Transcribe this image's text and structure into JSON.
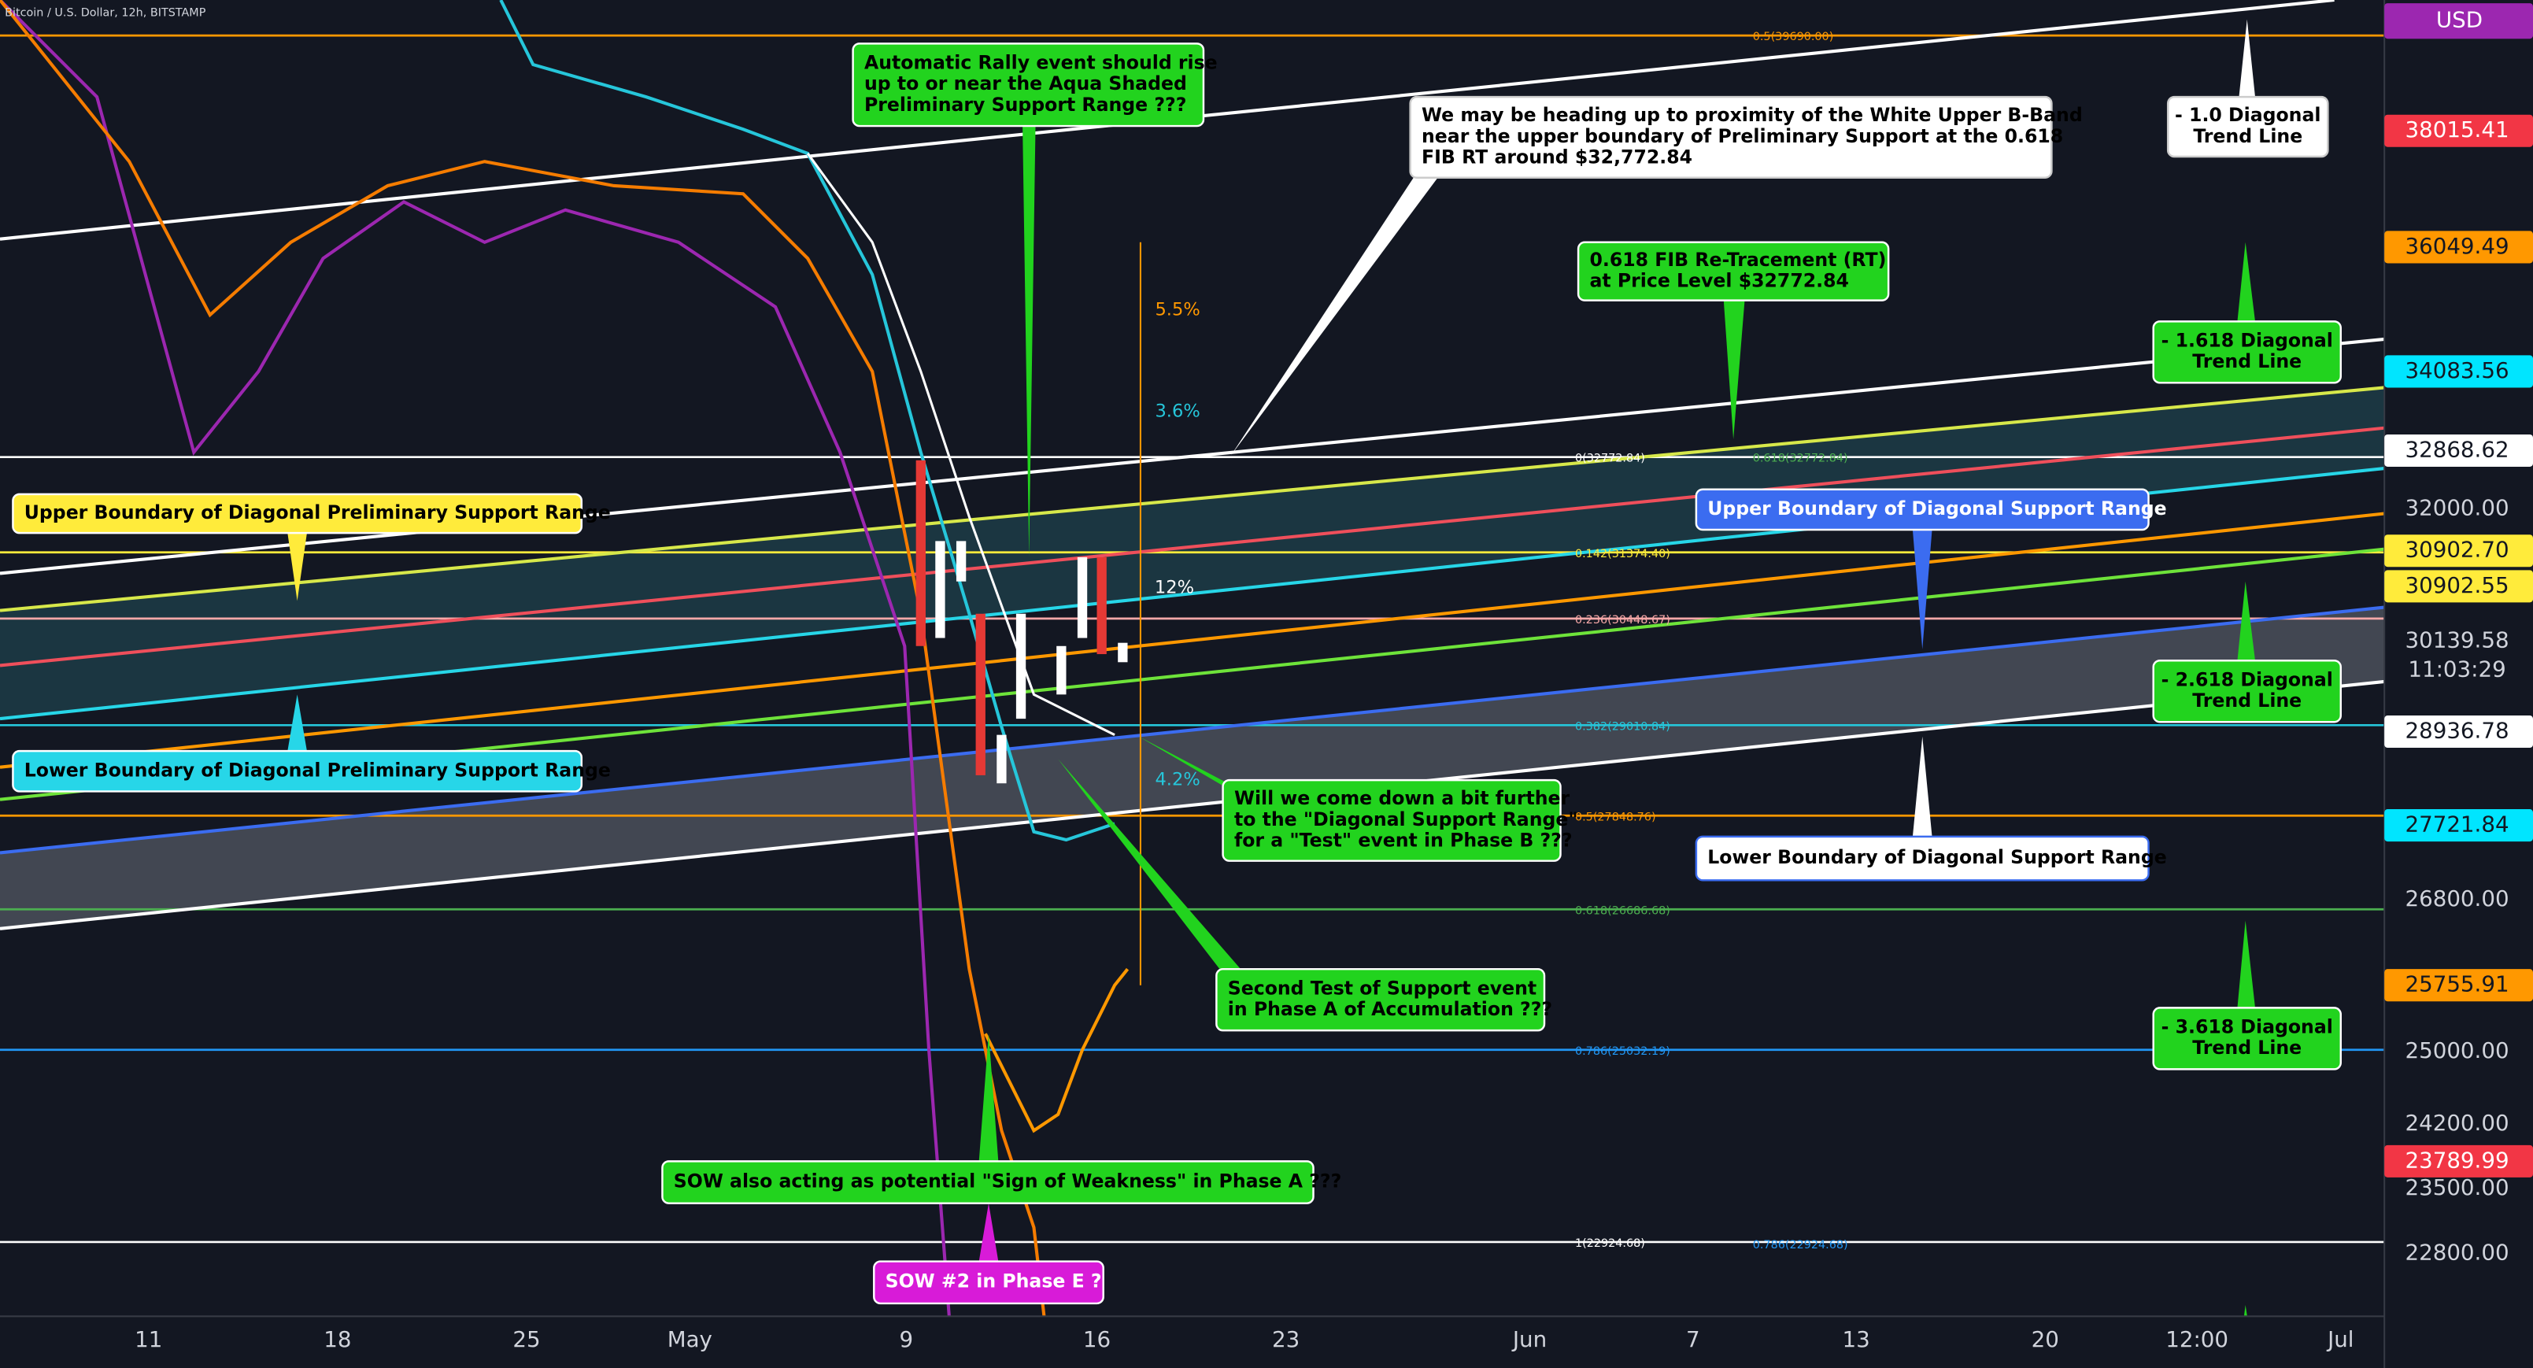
{
  "header": {
    "symbol": "Bitcoin / U.S. Dollar, 12h, BITSTAMP",
    "currency": "USD"
  },
  "price_axis": [
    "38015.41",
    "36049.49",
    "34083.56",
    "32868.62",
    "32000.00",
    "30902.70",
    "30902.55",
    "30139.58",
    "11:03:29",
    "28936.78",
    "27721.84",
    "26800.00",
    "25755.91",
    "25000.00",
    "24200.00",
    "23789.99",
    "23500.00",
    "22800.00"
  ],
  "time_axis": [
    "11",
    "18",
    "25",
    "May",
    "9",
    "16",
    "23",
    "Jun",
    "7",
    "13",
    "20",
    "12:00",
    "Jul"
  ],
  "fib_levels": [
    "0.5(39690.00)",
    "0(32772.84)",
    "0.618(32772.84)",
    "0.142(31374.40)",
    "0.236(30448.67)",
    "0.382(29010.84)",
    "0.5(27848.76)",
    "0.618(26686.68)",
    "0.786(25032.19)",
    "1(22924.68)",
    "0.786(22924.68)"
  ],
  "percent_labels": [
    "5.5%",
    "3.6%",
    "12%",
    "4.2%"
  ],
  "annotations": [
    {
      "lines": [
        "Automatic Rally event should rise",
        "up to or near the Aqua Shaded",
        "Preliminary Support Range ???"
      ]
    },
    {
      "lines": [
        "We may be heading up to proximity of the White Upper B-Band",
        "near the upper boundary of Preliminary Support at the 0.618",
        "FIB RT around $32,772.84"
      ]
    },
    {
      "lines": [
        "- 1.0 Diagonal",
        "Trend Line"
      ]
    },
    {
      "lines": [
        "0.618 FIB Re-Tracement (RT)",
        "at Price Level $32772.84"
      ]
    },
    {
      "lines": [
        "- 1.618 Diagonal",
        "Trend Line"
      ]
    },
    {
      "lines": [
        "Upper Boundary of Diagonal Preliminary Support Range"
      ]
    },
    {
      "lines": [
        "Upper Boundary of Diagonal Support Range"
      ]
    },
    {
      "lines": [
        "- 2.618 Diagonal",
        "Trend Line"
      ]
    },
    {
      "lines": [
        "Lower Boundary of Diagonal Preliminary Support Range"
      ]
    },
    {
      "lines": [
        "Will we come down a bit further",
        "to the \"Diagonal Support Range\"",
        "for a \"Test\" event in Phase B ???"
      ]
    },
    {
      "lines": [
        "Lower Boundary of Diagonal Support Range"
      ]
    },
    {
      "lines": [
        "Second Test of Support event",
        "in Phase A of Accumulation ???"
      ]
    },
    {
      "lines": [
        "- 3.618 Diagonal",
        "Trend Line"
      ]
    },
    {
      "lines": [
        "SOW also acting as potential \"Sign of Weakness\" in Phase A ???"
      ]
    },
    {
      "lines": [
        "SOW #2 in Phase E ?"
      ]
    }
  ]
}
